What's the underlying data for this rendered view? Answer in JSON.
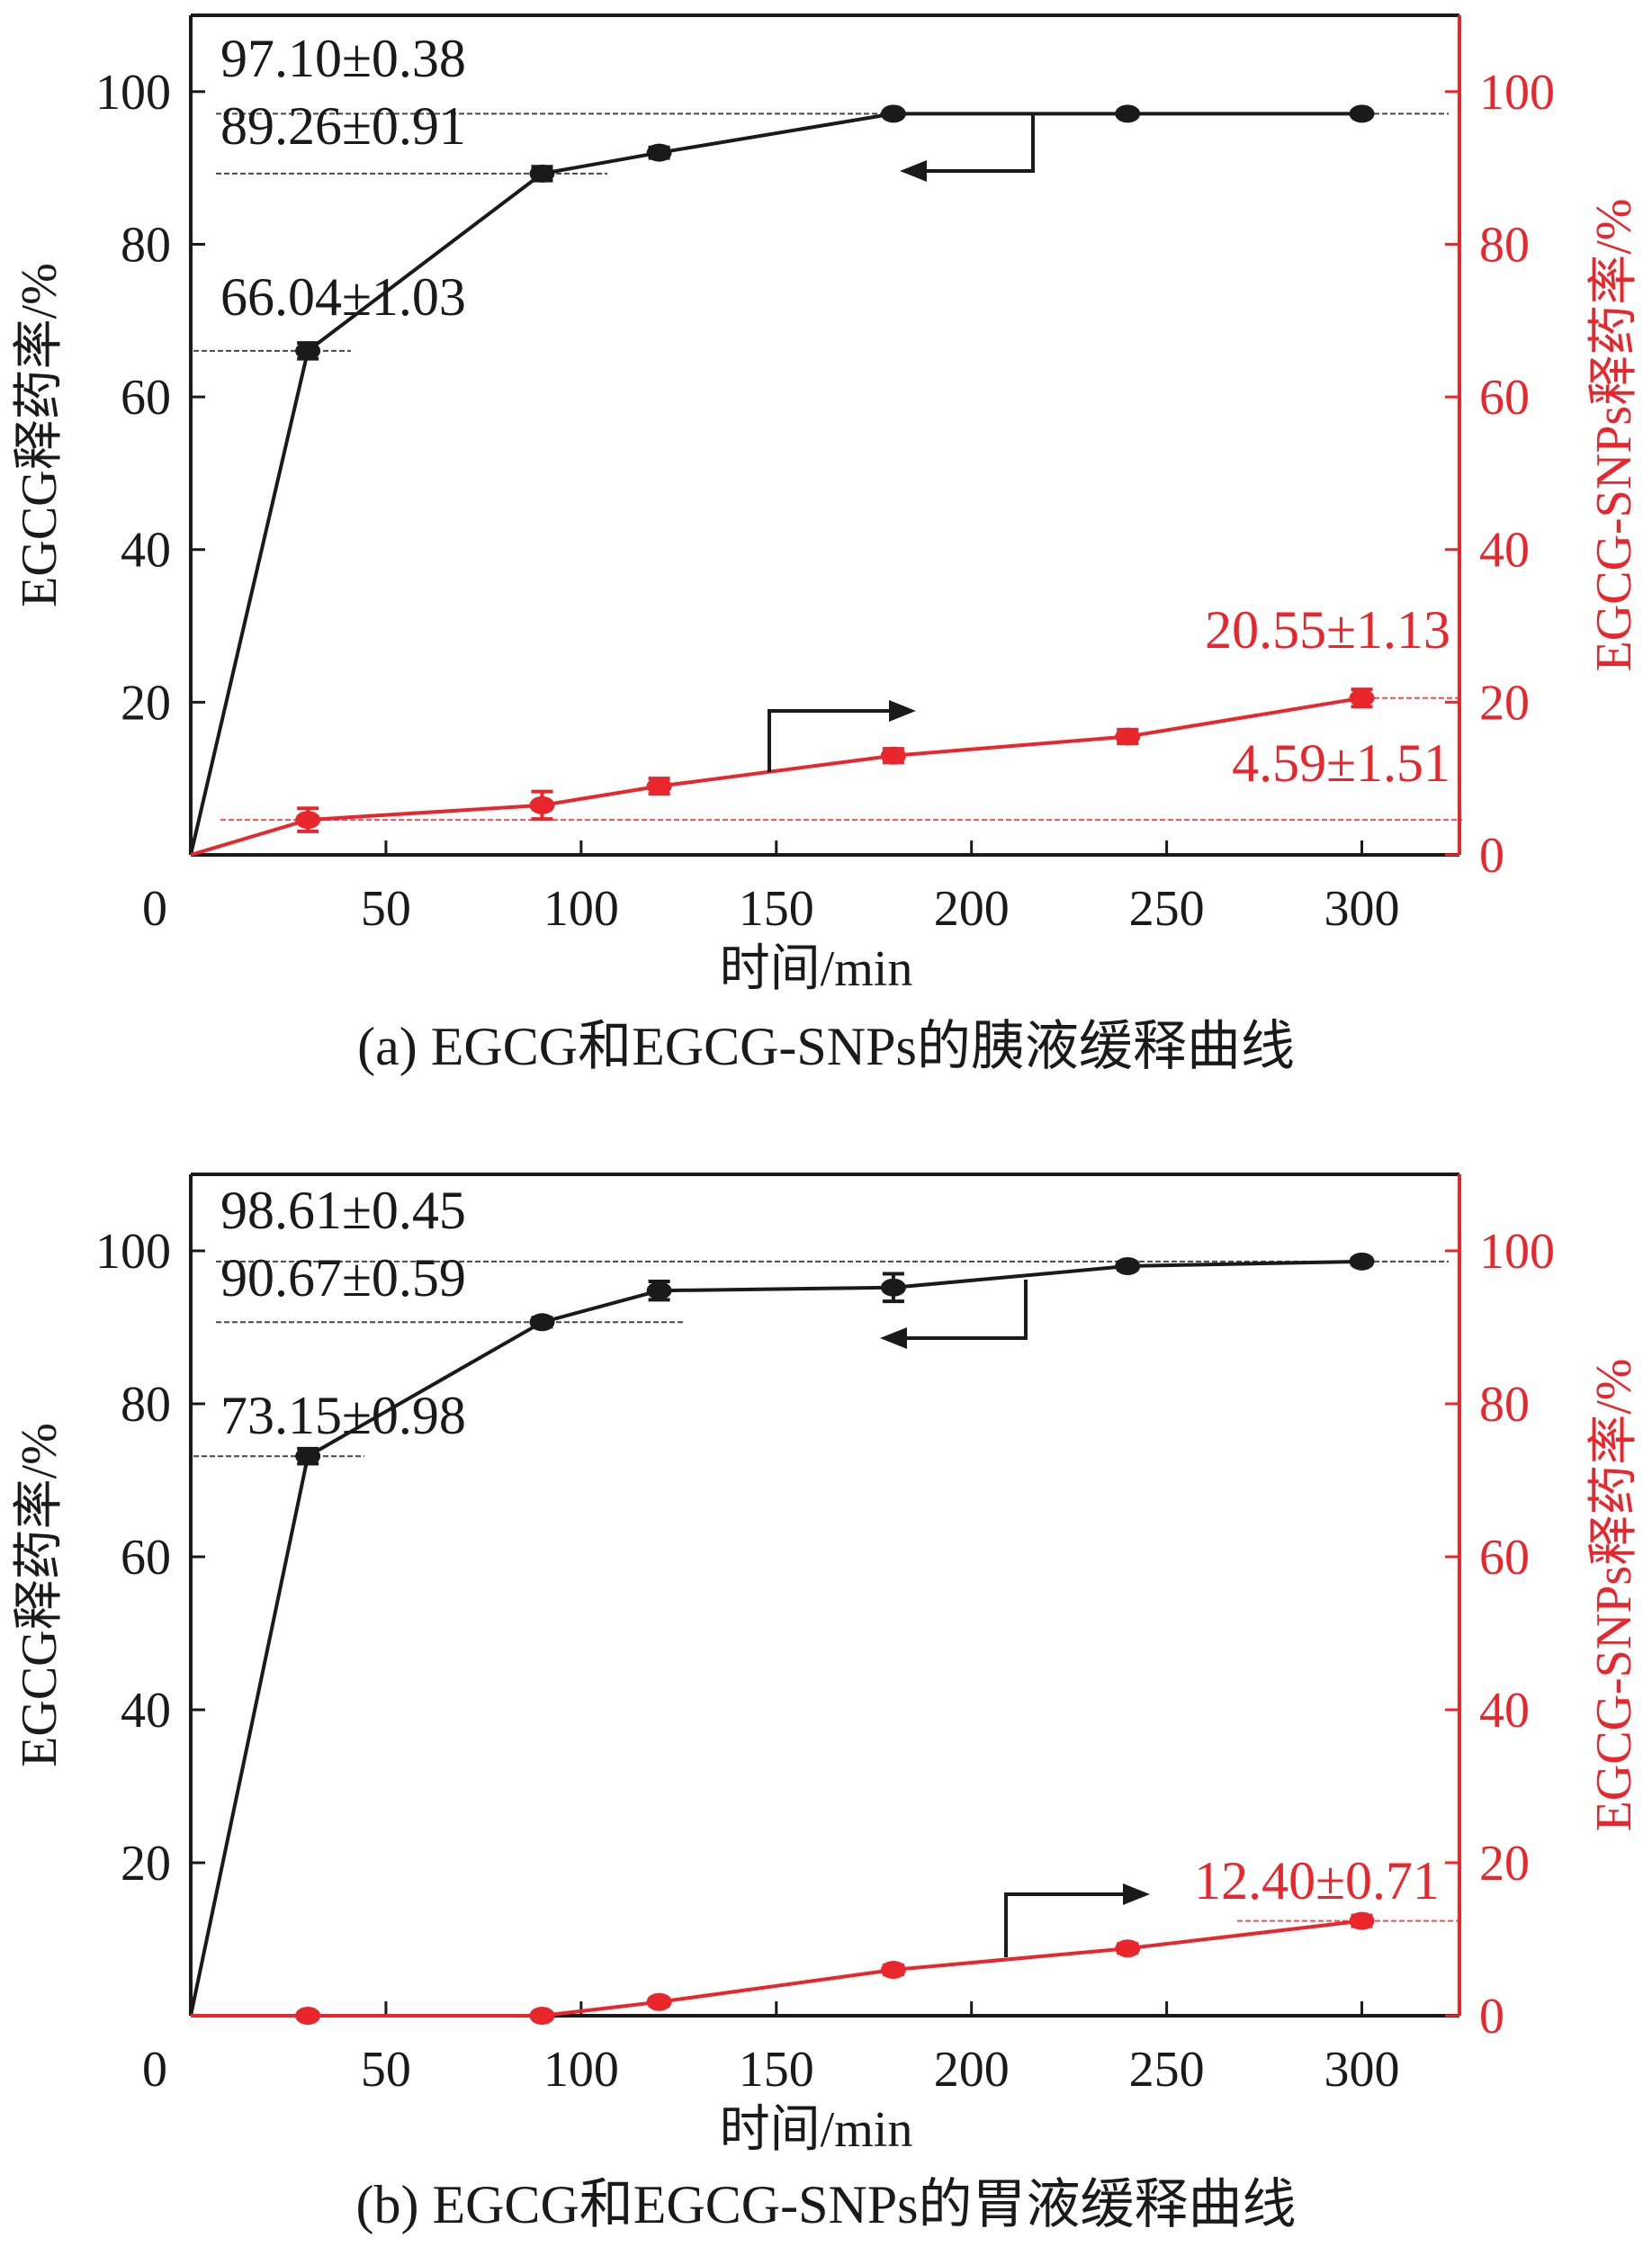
{
  "colors": {
    "black": "#1a1a1a",
    "red": "#e8262b",
    "grid_ref": "#555555"
  },
  "chart_data": [
    {
      "type": "line",
      "caption": "(a) EGCG和EGCG-SNPs的胰液缓释曲线",
      "xlabel": "时间/min",
      "ylabel_left": "EGCG释药率/%",
      "ylabel_right": "EGCG-SNPs释药率/%",
      "xlim": [
        0,
        325
      ],
      "ylim": [
        0,
        110
      ],
      "x_ticks": [
        0,
        50,
        100,
        150,
        200,
        250,
        300
      ],
      "y_ticks": [
        20,
        40,
        60,
        80,
        100
      ],
      "y_ticks_right": [
        0,
        20,
        40,
        60,
        80,
        100
      ],
      "series": [
        {
          "name": "EGCG",
          "color": "#1a1a1a",
          "axis": "left",
          "x": [
            0,
            30,
            90,
            120,
            180,
            240,
            300
          ],
          "y": [
            0,
            66.04,
            89.26,
            92.0,
            97.1,
            97.1,
            97.1
          ],
          "err": [
            0,
            1.03,
            0.91,
            0.7,
            0.38,
            0.4,
            0.4
          ]
        },
        {
          "name": "EGCG-SNPs",
          "color": "#e8262b",
          "axis": "right",
          "x": [
            0,
            30,
            90,
            120,
            180,
            240,
            300
          ],
          "y": [
            0,
            4.59,
            6.5,
            9.0,
            13.0,
            15.5,
            20.55
          ],
          "err": [
            0,
            1.51,
            1.8,
            1.0,
            0.9,
            0.9,
            1.13
          ]
        }
      ],
      "annotations": [
        {
          "text": "97.10±0.38",
          "color": "#1a1a1a",
          "y": 97.1
        },
        {
          "text": "89.26±0.91",
          "color": "#1a1a1a",
          "y": 89.26
        },
        {
          "text": "66.04±1.03",
          "color": "#1a1a1a",
          "y": 66.04
        },
        {
          "text": "20.55±1.13",
          "color": "#e8262b",
          "y": 20.55
        },
        {
          "text": "4.59±1.51",
          "color": "#e8262b",
          "y": 4.59
        }
      ]
    },
    {
      "type": "line",
      "caption": "(b) EGCG和EGCG-SNPs的胃液缓释曲线",
      "xlabel": "时间/min",
      "ylabel_left": "EGCG释药率/%",
      "ylabel_right": "EGCG-SNPs释药率/%",
      "xlim": [
        0,
        325
      ],
      "ylim": [
        0,
        110
      ],
      "x_ticks": [
        0,
        50,
        100,
        150,
        200,
        250,
        300
      ],
      "y_ticks": [
        20,
        40,
        60,
        80,
        100
      ],
      "y_ticks_right": [
        0,
        20,
        40,
        60,
        80,
        100
      ],
      "series": [
        {
          "name": "EGCG",
          "color": "#1a1a1a",
          "axis": "left",
          "x": [
            0,
            30,
            90,
            120,
            180,
            240,
            300
          ],
          "y": [
            0,
            73.15,
            90.67,
            94.8,
            95.2,
            98.0,
            98.61
          ],
          "err": [
            0,
            0.98,
            0.59,
            1.2,
            1.8,
            0.5,
            0.45
          ]
        },
        {
          "name": "EGCG-SNPs",
          "color": "#e8262b",
          "axis": "right",
          "x": [
            0,
            30,
            90,
            120,
            180,
            240,
            300
          ],
          "y": [
            0,
            0,
            0,
            1.8,
            6.0,
            8.8,
            12.4
          ],
          "err": [
            0,
            0.3,
            0.3,
            0.5,
            0.6,
            0.6,
            0.71
          ]
        }
      ],
      "annotations": [
        {
          "text": "98.61±0.45",
          "color": "#1a1a1a",
          "y": 98.61
        },
        {
          "text": "90.67±0.59",
          "color": "#1a1a1a",
          "y": 90.67
        },
        {
          "text": "73.15±0.98",
          "color": "#1a1a1a",
          "y": 73.15
        },
        {
          "text": "12.40±0.71",
          "color": "#e8262b",
          "y": 12.4
        }
      ]
    }
  ]
}
